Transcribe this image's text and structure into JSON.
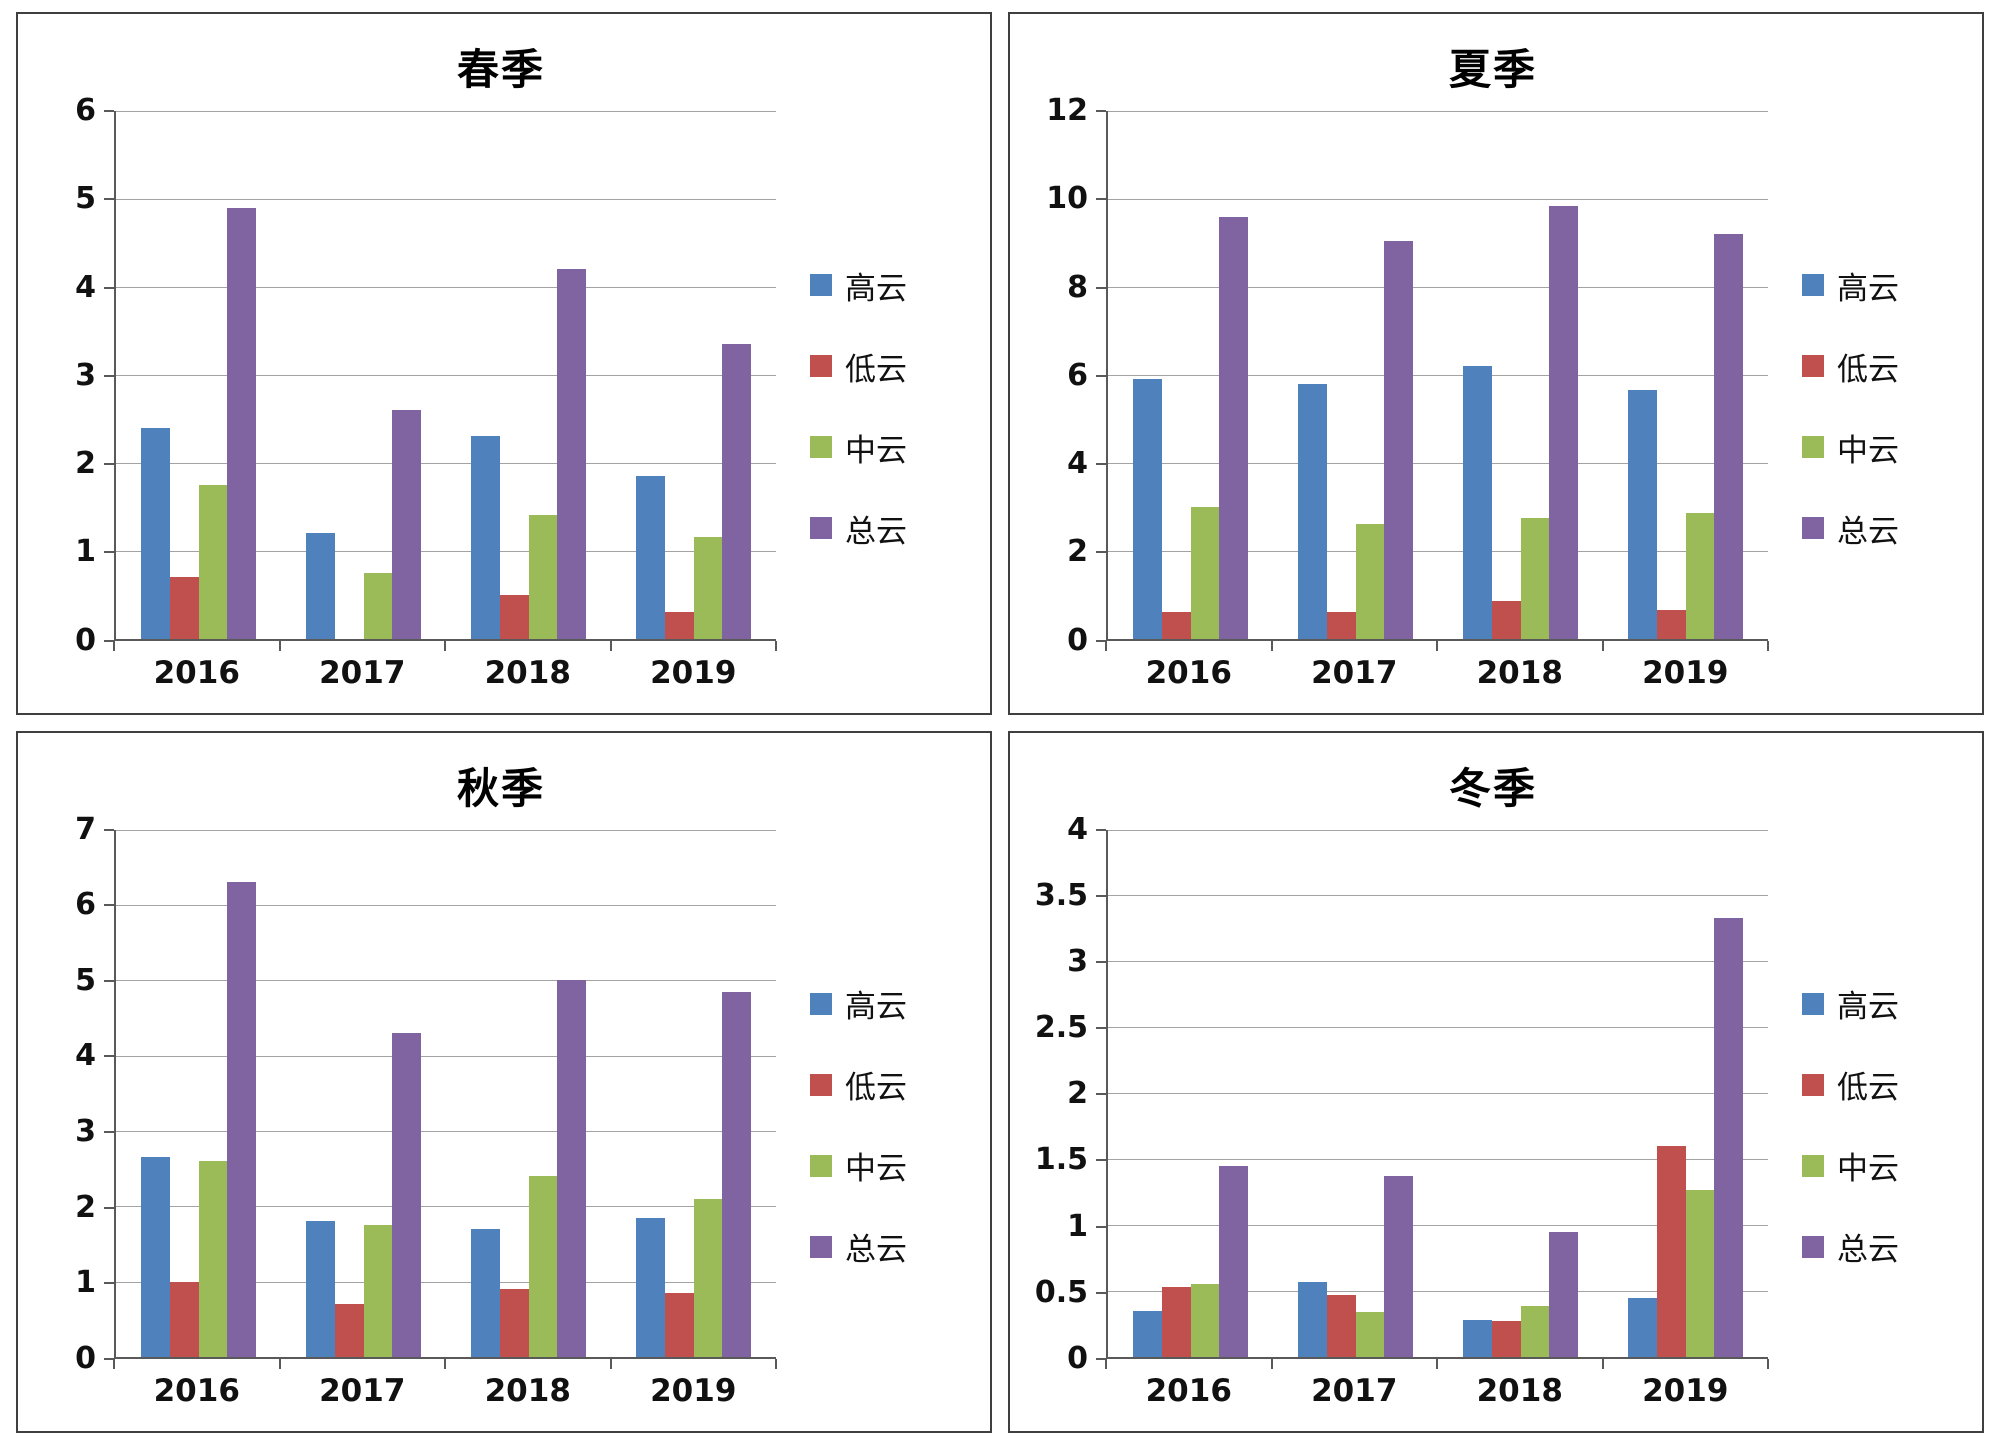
{
  "page": {
    "background": "#ffffff",
    "panel_border": "#3f3f3f"
  },
  "series_names": [
    "高云",
    "低云",
    "中云",
    "总云"
  ],
  "series_colors": {
    "高云": "#4F81BD",
    "低云": "#C0504D",
    "中云": "#9BBB59",
    "总云": "#8064A2"
  },
  "chart_data": [
    {
      "type": "bar",
      "title": "春季",
      "categories": [
        "2016",
        "2017",
        "2018",
        "2019"
      ],
      "series": [
        {
          "name": "高云",
          "color": "#4F81BD",
          "values": [
            2.4,
            1.2,
            2.3,
            1.85
          ]
        },
        {
          "name": "低云",
          "color": "#C0504D",
          "values": [
            0.7,
            0,
            0.5,
            0.3
          ]
        },
        {
          "name": "中云",
          "color": "#9BBB59",
          "values": [
            1.75,
            0.75,
            1.4,
            1.15
          ]
        },
        {
          "name": "总云",
          "color": "#8064A2",
          "values": [
            4.9,
            2.6,
            4.2,
            3.35
          ]
        }
      ],
      "ylim": [
        0,
        6
      ],
      "ytick_step": 1,
      "grid": true,
      "legend_position": "right"
    },
    {
      "type": "bar",
      "title": "夏季",
      "categories": [
        "2016",
        "2017",
        "2018",
        "2019"
      ],
      "series": [
        {
          "name": "高云",
          "color": "#4F81BD",
          "values": [
            5.9,
            5.8,
            6.2,
            5.65
          ]
        },
        {
          "name": "低云",
          "color": "#C0504D",
          "values": [
            0.6,
            0.6,
            0.85,
            0.65
          ]
        },
        {
          "name": "中云",
          "color": "#9BBB59",
          "values": [
            3.0,
            2.6,
            2.75,
            2.85
          ]
        },
        {
          "name": "总云",
          "color": "#8064A2",
          "values": [
            9.6,
            9.05,
            9.85,
            9.2
          ]
        }
      ],
      "ylim": [
        0,
        12
      ],
      "ytick_step": 2,
      "grid": true,
      "legend_position": "right"
    },
    {
      "type": "bar",
      "title": "秋季",
      "categories": [
        "2016",
        "2017",
        "2018",
        "2019"
      ],
      "series": [
        {
          "name": "高云",
          "color": "#4F81BD",
          "values": [
            2.65,
            1.8,
            1.7,
            1.85
          ]
        },
        {
          "name": "低云",
          "color": "#C0504D",
          "values": [
            1.0,
            0.7,
            0.9,
            0.85
          ]
        },
        {
          "name": "中云",
          "color": "#9BBB59",
          "values": [
            2.6,
            1.75,
            2.4,
            2.1
          ]
        },
        {
          "name": "总云",
          "color": "#8064A2",
          "values": [
            6.3,
            4.3,
            5.0,
            4.85
          ]
        }
      ],
      "ylim": [
        0,
        7
      ],
      "ytick_step": 1,
      "grid": true,
      "legend_position": "right"
    },
    {
      "type": "bar",
      "title": "冬季",
      "categories": [
        "2016",
        "2017",
        "2018",
        "2019"
      ],
      "series": [
        {
          "name": "高云",
          "color": "#4F81BD",
          "values": [
            0.35,
            0.57,
            0.28,
            0.45
          ]
        },
        {
          "name": "低云",
          "color": "#C0504D",
          "values": [
            0.53,
            0.47,
            0.27,
            1.6
          ]
        },
        {
          "name": "中云",
          "color": "#9BBB59",
          "values": [
            0.55,
            0.34,
            0.39,
            1.27
          ]
        },
        {
          "name": "总云",
          "color": "#8064A2",
          "values": [
            1.45,
            1.37,
            0.95,
            3.33
          ]
        }
      ],
      "ylim": [
        0,
        4
      ],
      "ytick_step": 0.5,
      "grid": true,
      "legend_position": "right"
    }
  ]
}
